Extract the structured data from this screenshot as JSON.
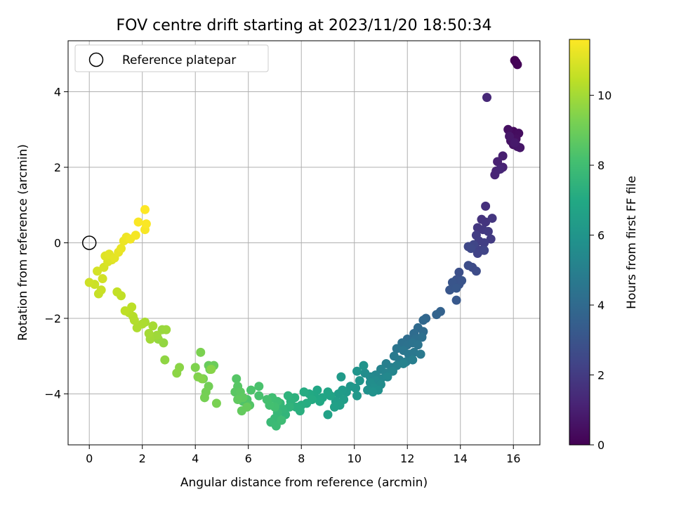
{
  "chart_data": {
    "type": "scatter",
    "title": "FOV centre drift starting at 2023/11/20 18:50:34",
    "xlabel": "Angular distance from reference (arcmin)",
    "ylabel": "Rotation from reference (arcmin)",
    "xlim": [
      -0.8,
      17.0
    ],
    "ylim": [
      -5.35,
      5.35
    ],
    "xticks": [
      0,
      2,
      4,
      6,
      8,
      10,
      12,
      14,
      16
    ],
    "yticks": [
      -4,
      -2,
      0,
      2,
      4
    ],
    "xtick_labels": [
      "0",
      "2",
      "4",
      "6",
      "8",
      "10",
      "12",
      "14",
      "16"
    ],
    "ytick_labels": [
      "−4",
      "−2",
      "0",
      "2",
      "4"
    ],
    "grid": true,
    "legend": {
      "position": "top-left",
      "label": "Reference platepar"
    },
    "reference_point": {
      "x": 0,
      "y": 0
    },
    "colorbar": {
      "label": "Hours from first FF file",
      "colormap": "viridis",
      "range": [
        0,
        11.6
      ],
      "ticks": [
        0,
        2,
        4,
        6,
        8,
        10
      ],
      "tick_labels": [
        "0",
        "2",
        "4",
        "6",
        "8",
        "10"
      ]
    },
    "points": [
      [
        16.05,
        4.83,
        0.0
      ],
      [
        16.1,
        4.78,
        0.05
      ],
      [
        16.15,
        4.72,
        0.1
      ],
      [
        16.0,
        2.95,
        0.3
      ],
      [
        15.95,
        2.85,
        0.35
      ],
      [
        16.2,
        2.9,
        0.4
      ],
      [
        16.1,
        2.75,
        0.45
      ],
      [
        15.8,
        3.0,
        0.5
      ],
      [
        15.9,
        2.7,
        0.55
      ],
      [
        16.0,
        2.6,
        0.6
      ],
      [
        16.15,
        2.55,
        0.65
      ],
      [
        16.25,
        2.52,
        0.7
      ],
      [
        15.85,
        2.82,
        0.75
      ],
      [
        16.05,
        2.65,
        0.8
      ],
      [
        15.6,
        2.3,
        1.0
      ],
      [
        15.4,
        2.15,
        1.05
      ],
      [
        15.6,
        2.0,
        1.1
      ],
      [
        15.35,
        1.9,
        1.15
      ],
      [
        15.3,
        1.8,
        1.2
      ],
      [
        15.5,
        1.95,
        1.25
      ],
      [
        15.0,
        3.85,
        1.3
      ],
      [
        14.95,
        0.97,
        1.6
      ],
      [
        14.8,
        0.62,
        1.7
      ],
      [
        14.95,
        0.55,
        1.75
      ],
      [
        15.2,
        0.65,
        1.8
      ],
      [
        14.65,
        0.4,
        1.85
      ],
      [
        14.85,
        0.35,
        1.9
      ],
      [
        15.05,
        0.3,
        1.95
      ],
      [
        15.15,
        0.1,
        2.0
      ],
      [
        14.6,
        0.2,
        2.05
      ],
      [
        14.7,
        0.05,
        2.1
      ],
      [
        14.9,
        0.0,
        2.15
      ],
      [
        14.55,
        -0.1,
        2.2
      ],
      [
        14.75,
        -0.2,
        2.25
      ],
      [
        14.65,
        -0.28,
        2.3
      ],
      [
        14.9,
        -0.2,
        2.35
      ],
      [
        14.5,
        -0.05,
        2.4
      ],
      [
        14.3,
        -0.1,
        2.5
      ],
      [
        14.4,
        -0.15,
        2.55
      ],
      [
        14.45,
        -0.65,
        2.6
      ],
      [
        14.6,
        -0.75,
        2.65
      ],
      [
        14.3,
        -0.6,
        2.7
      ],
      [
        13.95,
        -0.78,
        2.8
      ],
      [
        13.85,
        -0.98,
        2.9
      ],
      [
        13.95,
        -1.1,
        2.95
      ],
      [
        14.05,
        -1.0,
        3.0
      ],
      [
        13.7,
        -1.05,
        3.05
      ],
      [
        13.6,
        -1.25,
        3.1
      ],
      [
        13.85,
        -1.2,
        3.15
      ],
      [
        13.85,
        -1.52,
        3.2
      ],
      [
        13.25,
        -1.82,
        3.6
      ],
      [
        13.1,
        -1.9,
        3.7
      ],
      [
        12.7,
        -2.0,
        3.8
      ],
      [
        12.6,
        -2.05,
        3.9
      ],
      [
        12.4,
        -2.25,
        4.0
      ],
      [
        12.6,
        -2.35,
        4.05
      ],
      [
        12.25,
        -2.4,
        4.1
      ],
      [
        12.0,
        -2.55,
        4.15
      ],
      [
        12.3,
        -2.55,
        4.2
      ],
      [
        12.55,
        -2.5,
        4.25
      ],
      [
        11.8,
        -2.65,
        4.3
      ],
      [
        12.0,
        -2.7,
        4.35
      ],
      [
        12.2,
        -2.65,
        4.4
      ],
      [
        12.4,
        -2.7,
        4.45
      ],
      [
        11.6,
        -2.8,
        4.5
      ],
      [
        11.85,
        -2.85,
        4.55
      ],
      [
        12.05,
        -2.95,
        4.6
      ],
      [
        12.25,
        -2.9,
        4.65
      ],
      [
        12.5,
        -2.95,
        4.7
      ],
      [
        11.5,
        -3.0,
        4.75
      ],
      [
        11.7,
        -3.1,
        4.8
      ],
      [
        11.95,
        -3.15,
        4.85
      ],
      [
        12.2,
        -3.1,
        4.9
      ],
      [
        11.2,
        -3.2,
        4.95
      ],
      [
        11.4,
        -3.3,
        5.0
      ],
      [
        11.6,
        -3.25,
        5.05
      ],
      [
        11.85,
        -3.2,
        5.1
      ],
      [
        11.0,
        -3.35,
        5.15
      ],
      [
        11.2,
        -3.45,
        5.2
      ],
      [
        11.45,
        -3.4,
        5.25
      ],
      [
        10.8,
        -3.5,
        5.3
      ],
      [
        11.0,
        -3.6,
        5.35
      ],
      [
        11.25,
        -3.55,
        5.4
      ],
      [
        10.6,
        -3.55,
        5.45
      ],
      [
        10.8,
        -3.65,
        5.5
      ],
      [
        11.0,
        -3.75,
        5.55
      ],
      [
        10.4,
        -3.45,
        5.6
      ],
      [
        10.6,
        -3.7,
        5.65
      ],
      [
        10.75,
        -3.85,
        5.7
      ],
      [
        10.9,
        -3.9,
        5.75
      ],
      [
        10.5,
        -3.9,
        5.8
      ],
      [
        10.7,
        -3.95,
        5.85
      ],
      [
        10.35,
        -3.25,
        5.9
      ],
      [
        10.1,
        -3.4,
        5.95
      ],
      [
        10.2,
        -3.65,
        6.0
      ],
      [
        10.05,
        -3.85,
        6.05
      ],
      [
        9.85,
        -3.8,
        6.1
      ],
      [
        10.1,
        -4.05,
        6.15
      ],
      [
        9.7,
        -3.95,
        6.2
      ],
      [
        9.5,
        -3.55,
        6.25
      ],
      [
        9.55,
        -3.9,
        6.3
      ],
      [
        9.4,
        -4.0,
        6.35
      ],
      [
        9.6,
        -4.15,
        6.4
      ],
      [
        9.3,
        -4.2,
        6.45
      ],
      [
        9.45,
        -4.3,
        6.5
      ],
      [
        9.25,
        -4.35,
        6.55
      ],
      [
        9.0,
        -4.55,
        6.6
      ],
      [
        9.1,
        -4.05,
        6.7
      ],
      [
        9.0,
        -3.95,
        6.75
      ],
      [
        8.8,
        -4.1,
        6.8
      ],
      [
        8.6,
        -3.9,
        6.85
      ],
      [
        8.5,
        -4.05,
        6.9
      ],
      [
        8.7,
        -4.2,
        6.95
      ],
      [
        8.3,
        -4.0,
        7.0
      ],
      [
        8.4,
        -4.15,
        7.05
      ],
      [
        8.1,
        -3.95,
        7.1
      ],
      [
        8.2,
        -4.25,
        7.15
      ],
      [
        8.0,
        -4.3,
        7.2
      ],
      [
        7.95,
        -4.45,
        7.25
      ],
      [
        7.8,
        -4.35,
        7.3
      ],
      [
        7.75,
        -4.1,
        7.35
      ],
      [
        7.6,
        -4.2,
        7.4
      ],
      [
        7.5,
        -4.05,
        7.45
      ],
      [
        7.55,
        -4.35,
        7.5
      ],
      [
        7.4,
        -4.55,
        7.55
      ],
      [
        7.3,
        -4.4,
        7.6
      ],
      [
        7.2,
        -4.25,
        7.65
      ],
      [
        7.1,
        -4.5,
        7.7
      ],
      [
        7.0,
        -4.65,
        7.75
      ],
      [
        6.85,
        -4.75,
        7.8
      ],
      [
        7.05,
        -4.85,
        7.85
      ],
      [
        7.25,
        -4.7,
        7.9
      ],
      [
        7.1,
        -4.2,
        7.95
      ],
      [
        6.9,
        -4.1,
        8.0
      ],
      [
        7.0,
        -4.35,
        8.05
      ],
      [
        6.8,
        -4.3,
        8.1
      ],
      [
        6.7,
        -4.15,
        8.15
      ],
      [
        6.4,
        -4.05,
        8.2
      ],
      [
        6.4,
        -3.8,
        8.25
      ],
      [
        6.1,
        -3.9,
        8.3
      ],
      [
        5.95,
        -4.15,
        8.35
      ],
      [
        5.8,
        -4.2,
        8.4
      ],
      [
        6.05,
        -4.3,
        8.45
      ],
      [
        5.55,
        -3.6,
        8.5
      ],
      [
        5.6,
        -3.8,
        8.55
      ],
      [
        5.5,
        -3.95,
        8.6
      ],
      [
        5.7,
        -3.95,
        8.65
      ],
      [
        5.8,
        -4.1,
        8.7
      ],
      [
        5.6,
        -4.15,
        8.75
      ],
      [
        5.75,
        -4.45,
        8.8
      ],
      [
        5.95,
        -4.35,
        8.85
      ],
      [
        4.5,
        -3.25,
        8.9
      ],
      [
        4.7,
        -3.25,
        8.95
      ],
      [
        4.55,
        -3.35,
        9.0
      ],
      [
        4.3,
        -3.6,
        9.05
      ],
      [
        4.5,
        -3.8,
        9.1
      ],
      [
        4.4,
        -3.95,
        9.15
      ],
      [
        4.35,
        -4.1,
        9.2
      ],
      [
        4.8,
        -4.25,
        9.25
      ],
      [
        4.2,
        -2.9,
        9.3
      ],
      [
        4.0,
        -3.3,
        9.35
      ],
      [
        4.1,
        -3.55,
        9.4
      ],
      [
        4.25,
        -3.6,
        9.45
      ],
      [
        4.6,
        -3.35,
        9.5
      ],
      [
        3.4,
        -3.3,
        9.55
      ],
      [
        3.3,
        -3.45,
        9.6
      ],
      [
        2.85,
        -3.1,
        9.65
      ],
      [
        2.8,
        -2.65,
        9.7
      ],
      [
        2.6,
        -2.55,
        9.75
      ],
      [
        2.75,
        -2.3,
        9.8
      ],
      [
        2.9,
        -2.3,
        9.85
      ],
      [
        2.55,
        -2.45,
        9.9
      ],
      [
        2.3,
        -2.55,
        9.95
      ],
      [
        2.25,
        -2.4,
        10.0
      ],
      [
        2.4,
        -2.2,
        10.05
      ],
      [
        2.1,
        -2.1,
        10.1
      ],
      [
        2.0,
        -2.15,
        10.15
      ],
      [
        1.8,
        -2.25,
        10.2
      ],
      [
        1.7,
        -2.05,
        10.25
      ],
      [
        1.65,
        -1.95,
        10.3
      ],
      [
        1.5,
        -1.85,
        10.35
      ],
      [
        1.6,
        -1.7,
        10.4
      ],
      [
        1.35,
        -1.8,
        10.45
      ],
      [
        1.2,
        -1.4,
        10.5
      ],
      [
        1.05,
        -1.3,
        10.55
      ],
      [
        0.35,
        -1.35,
        10.6
      ],
      [
        0.45,
        -1.25,
        10.65
      ],
      [
        0.2,
        -1.1,
        10.7
      ],
      [
        0.0,
        -1.05,
        10.75
      ],
      [
        0.5,
        -0.95,
        10.8
      ],
      [
        0.3,
        -0.75,
        10.85
      ],
      [
        0.55,
        -0.65,
        10.9
      ],
      [
        0.7,
        -0.5,
        10.95
      ],
      [
        0.85,
        -0.45,
        11.0
      ],
      [
        0.6,
        -0.35,
        11.05
      ],
      [
        0.75,
        -0.3,
        11.1
      ],
      [
        0.95,
        -0.4,
        11.15
      ],
      [
        1.1,
        -0.25,
        11.2
      ],
      [
        1.2,
        -0.15,
        11.25
      ],
      [
        1.3,
        0.05,
        11.3
      ],
      [
        1.4,
        0.15,
        11.35
      ],
      [
        1.55,
        0.1,
        11.4
      ],
      [
        1.75,
        0.2,
        11.45
      ],
      [
        2.1,
        0.35,
        11.5
      ],
      [
        1.85,
        0.55,
        11.55
      ],
      [
        2.15,
        0.5,
        11.55
      ],
      [
        2.1,
        0.88,
        11.6
      ]
    ]
  }
}
